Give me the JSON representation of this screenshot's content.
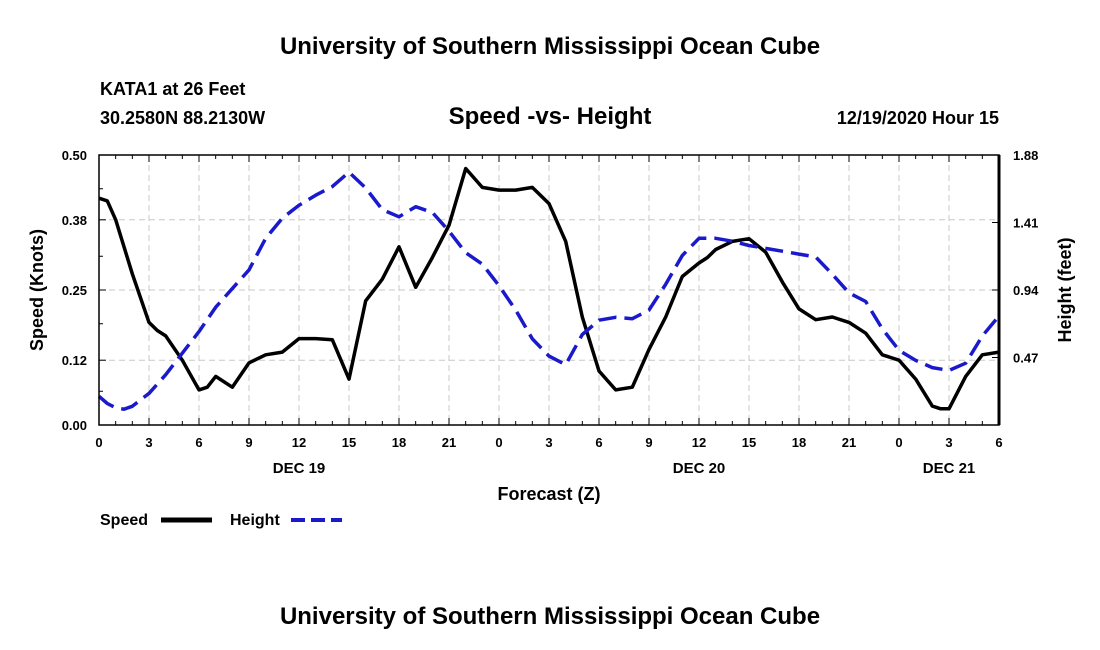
{
  "header": {
    "org_title": "University of Southern Mississippi Ocean Cube",
    "station": "KATA1 at 26 Feet",
    "coords": "30.2580N 88.2130W",
    "chart_title": "Speed -vs- Height",
    "datetime": "12/19/2020 Hour 15"
  },
  "footer": {
    "org_title": "University of Southern Mississippi Ocean Cube"
  },
  "legend": {
    "speed_label": "Speed",
    "height_label": "Height"
  },
  "colors": {
    "speed": "#000000",
    "height": "#1a1acc",
    "grid": "#c8c8c8"
  },
  "chart_data": {
    "type": "line",
    "title": "Speed -vs- Height",
    "xlabel": "Forecast (Z)",
    "ylabel": "Speed (Knots)",
    "y2label": "Height (feet)",
    "xlim": [
      0,
      54
    ],
    "ylim": [
      0,
      0.5
    ],
    "y2lim": [
      0,
      1.88
    ],
    "x_ticks": [
      0,
      3,
      6,
      9,
      12,
      15,
      18,
      21,
      24,
      27,
      30,
      33,
      36,
      39,
      42,
      45,
      48,
      51,
      54
    ],
    "x_tick_labels": [
      "0",
      "3",
      "6",
      "9",
      "12",
      "15",
      "18",
      "21",
      "0",
      "3",
      "6",
      "9",
      "12",
      "15",
      "18",
      "21",
      "0",
      "3",
      "6"
    ],
    "y_ticks": [
      "0.00",
      "0.12",
      "0.25",
      "0.38",
      "0.50"
    ],
    "y2_ticks": [
      "0.47",
      "0.94",
      "1.41",
      "1.88"
    ],
    "date_labels": [
      {
        "x": 12,
        "label": "DEC 19"
      },
      {
        "x": 36,
        "label": "DEC 20"
      },
      {
        "x": 51,
        "label": "DEC 21"
      }
    ],
    "series": [
      {
        "name": "Speed",
        "axis": "left",
        "style": "solid",
        "x": [
          0,
          0.5,
          1,
          2,
          3,
          3.5,
          4,
          5,
          6,
          6.5,
          7,
          8,
          9,
          10,
          11,
          12,
          13,
          14,
          15,
          16,
          17,
          18,
          19,
          20,
          21,
          22,
          23,
          24,
          25,
          26,
          27,
          28,
          29,
          30,
          31,
          32,
          33,
          34,
          35,
          36,
          36.5,
          37,
          38,
          39,
          40,
          41,
          42,
          43,
          44,
          45,
          46,
          47,
          47.5,
          48,
          49,
          50,
          50.5,
          51,
          52,
          53,
          54
        ],
        "values": [
          0.42,
          0.415,
          0.38,
          0.28,
          0.19,
          0.175,
          0.165,
          0.12,
          0.065,
          0.07,
          0.09,
          0.07,
          0.115,
          0.13,
          0.135,
          0.16,
          0.16,
          0.158,
          0.085,
          0.23,
          0.27,
          0.33,
          0.255,
          0.31,
          0.37,
          0.475,
          0.44,
          0.435,
          0.435,
          0.44,
          0.41,
          0.34,
          0.2,
          0.1,
          0.065,
          0.07,
          0.14,
          0.2,
          0.275,
          0.3,
          0.31,
          0.325,
          0.34,
          0.345,
          0.32,
          0.265,
          0.215,
          0.195,
          0.2,
          0.19,
          0.17,
          0.13,
          0.125,
          0.12,
          0.085,
          0.035,
          0.03,
          0.03,
          0.09,
          0.13,
          0.135
        ]
      },
      {
        "name": "Height",
        "axis": "right",
        "style": "dashed",
        "x": [
          0,
          0.5,
          1,
          1.5,
          2,
          3,
          4,
          5,
          6,
          7,
          8,
          9,
          10,
          11,
          12,
          13,
          14,
          15,
          16,
          17,
          18,
          19,
          20,
          21,
          22,
          23,
          24,
          25,
          26,
          27,
          28,
          29,
          30,
          31,
          32,
          33,
          34,
          35,
          36,
          37,
          38,
          39,
          40,
          41,
          42,
          43,
          44,
          45,
          46,
          47,
          48,
          49,
          50,
          51,
          52,
          53,
          54
        ],
        "values": [
          0.2,
          0.15,
          0.12,
          0.11,
          0.13,
          0.22,
          0.35,
          0.5,
          0.65,
          0.82,
          0.95,
          1.08,
          1.3,
          1.44,
          1.53,
          1.6,
          1.66,
          1.76,
          1.65,
          1.5,
          1.45,
          1.52,
          1.48,
          1.35,
          1.2,
          1.12,
          0.97,
          0.8,
          0.6,
          0.48,
          0.42,
          0.63,
          0.73,
          0.75,
          0.74,
          0.8,
          0.98,
          1.18,
          1.3,
          1.3,
          1.28,
          1.25,
          1.23,
          1.21,
          1.19,
          1.17,
          1.05,
          0.92,
          0.86,
          0.67,
          0.52,
          0.45,
          0.4,
          0.38,
          0.43,
          0.62,
          0.76
        ]
      }
    ]
  }
}
